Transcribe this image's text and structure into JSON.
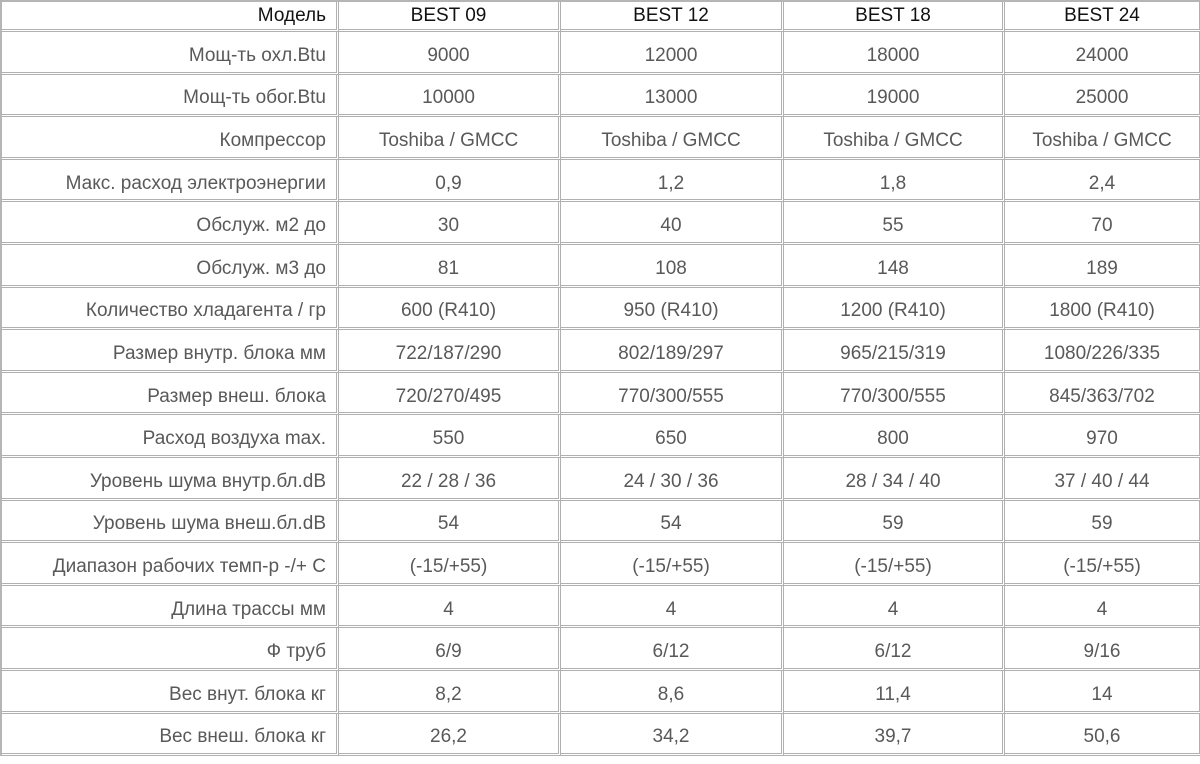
{
  "header": {
    "label": "Модель",
    "models": [
      "BEST 09",
      "BEST 12",
      "BEST 18",
      "BEST 24"
    ]
  },
  "rows": [
    {
      "label": "Мощ-ть охл.Btu",
      "values": [
        "9000",
        "12000",
        "18000",
        "24000"
      ]
    },
    {
      "label": "Мощ-ть обог.Btu",
      "values": [
        "10000",
        "13000",
        "19000",
        "25000"
      ]
    },
    {
      "label": "Компрессор",
      "values": [
        "Toshiba / GMCC",
        "Toshiba / GMCC",
        "Toshiba / GMCC",
        "Toshiba / GMCC"
      ]
    },
    {
      "label": "Макс. расход электроэнергии",
      "values": [
        "0,9",
        "1,2",
        "1,8",
        "2,4"
      ]
    },
    {
      "label": "Обслуж. м2 до",
      "values": [
        "30",
        "40",
        "55",
        "70"
      ]
    },
    {
      "label": "Обслуж. м3 до",
      "values": [
        "81",
        "108",
        "148",
        "189"
      ]
    },
    {
      "label": "Количество хладагента / гр",
      "values": [
        "600 (R410)",
        "950 (R410)",
        "1200 (R410)",
        "1800 (R410)"
      ]
    },
    {
      "label": "Размер внутр. блока мм",
      "values": [
        "722/187/290",
        "802/189/297",
        "965/215/319",
        "1080/226/335"
      ]
    },
    {
      "label": "Размер внеш. блока",
      "values": [
        "720/270/495",
        "770/300/555",
        "770/300/555",
        "845/363/702"
      ]
    },
    {
      "label": "Расход воздуха max.",
      "values": [
        "550",
        "650",
        "800",
        "970"
      ]
    },
    {
      "label": "Уровень шума внутр.бл.dB",
      "values": [
        "22 / 28 / 36",
        "24 / 30 / 36",
        "28 / 34 / 40",
        "37 / 40 / 44"
      ]
    },
    {
      "label": "Уровень шума внеш.бл.dB",
      "values": [
        "54",
        "54",
        "59",
        "59"
      ]
    },
    {
      "label": "Диапазон рабочих темп-р -/+ С",
      "values": [
        "(-15/+55)",
        "(-15/+55)",
        "(-15/+55)",
        "(-15/+55)"
      ]
    },
    {
      "label": "Длина трассы мм",
      "values": [
        "4",
        "4",
        "4",
        "4"
      ]
    },
    {
      "label": "Ф труб",
      "values": [
        "6/9",
        "6/12",
        "6/12",
        "9/16"
      ]
    },
    {
      "label": "Вес внут. блока кг",
      "values": [
        "8,2",
        "8,6",
        "11,4",
        "14"
      ]
    },
    {
      "label": "Вес внеш. блока кг",
      "values": [
        "26,2",
        "34,2",
        "39,7",
        "50,6"
      ]
    }
  ]
}
